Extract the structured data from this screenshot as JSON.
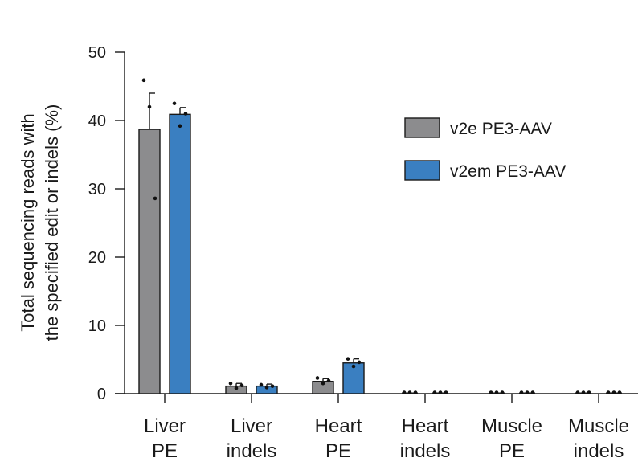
{
  "chart_data": {
    "type": "bar",
    "title": "",
    "xlabel": "",
    "ylabel_lines": [
      "Total sequencing reads with",
      "the specified edit or indels (%)"
    ],
    "ylim": [
      0,
      50
    ],
    "yticks": [
      0,
      10,
      20,
      30,
      40,
      50
    ],
    "ytick_labels": [
      "0",
      "10",
      "20",
      "30",
      "40",
      "50"
    ],
    "grid": false,
    "legend_position": "top-right",
    "categories": [
      {
        "line1": "Liver",
        "line2": "PE"
      },
      {
        "line1": "Liver",
        "line2": "indels"
      },
      {
        "line1": "Heart",
        "line2": "PE"
      },
      {
        "line1": "Heart",
        "line2": "indels"
      },
      {
        "line1": "Muscle",
        "line2": "PE"
      },
      {
        "line1": "Muscle",
        "line2": "indels"
      }
    ],
    "series": [
      {
        "name": "v2e PE3-AAV",
        "color": "#8c8c8e",
        "values": [
          38.7,
          1.1,
          1.8,
          0.1,
          0.05,
          0.05
        ],
        "error": [
          5.3,
          0.4,
          0.4,
          0.05,
          0.02,
          0.02
        ],
        "points": [
          [
            45.9,
            42.0,
            28.6
          ],
          [
            1.5,
            0.8,
            1.2
          ],
          [
            2.3,
            1.5,
            1.9
          ],
          [
            0.12,
            0.08,
            0.1
          ],
          [
            0.05,
            0.05,
            0.05
          ],
          [
            0.05,
            0.05,
            0.05
          ]
        ]
      },
      {
        "name": "v2em PE3-AAV",
        "color": "#3a7fc1",
        "values": [
          40.9,
          1.1,
          4.5,
          0.1,
          0.1,
          0.05
        ],
        "error": [
          1.0,
          0.3,
          0.6,
          0.05,
          0.05,
          0.02
        ],
        "points": [
          [
            42.5,
            39.2,
            41.0
          ],
          [
            1.3,
            0.9,
            1.1
          ],
          [
            5.1,
            4.0,
            4.6
          ],
          [
            0.12,
            0.08,
            0.1
          ],
          [
            0.12,
            0.08,
            0.1
          ],
          [
            0.05,
            0.05,
            0.05
          ]
        ]
      }
    ]
  }
}
